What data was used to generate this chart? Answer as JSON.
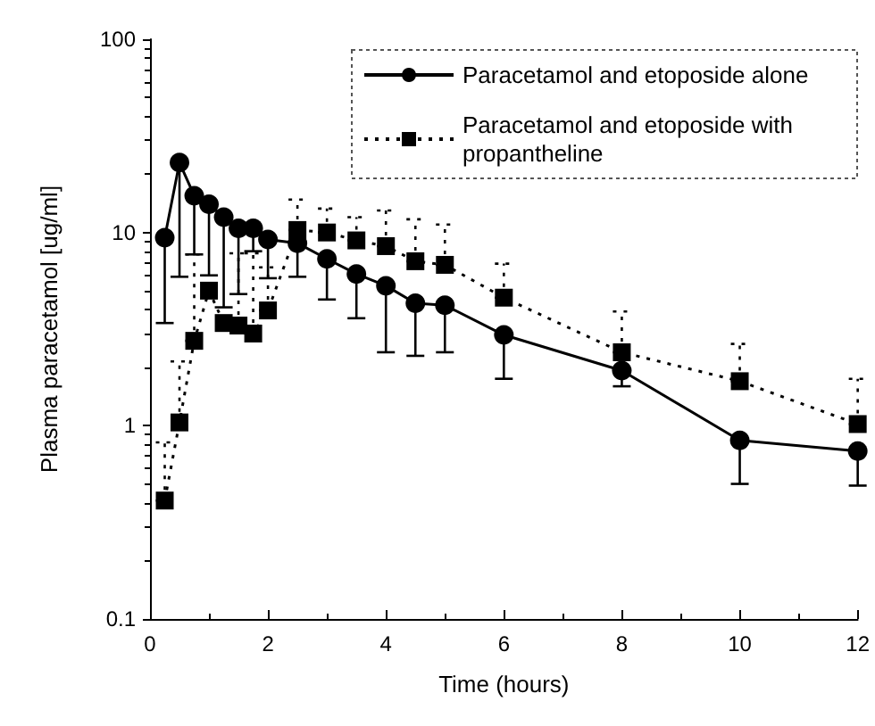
{
  "chart_data": {
    "type": "line",
    "xlabel": "Time (hours)",
    "ylabel": "Plasma paracetamol [ug/ml]",
    "x": [
      0.25,
      0.5,
      0.75,
      1,
      1.25,
      1.5,
      1.75,
      2,
      2.5,
      3,
      3.5,
      4,
      4.5,
      5,
      6,
      8,
      10,
      12
    ],
    "series": [
      {
        "name": "Paracetamol and etoposide alone",
        "color": "#000000",
        "marker": "circle",
        "line_style": "solid",
        "values": [
          9.4,
          23,
          15.5,
          14,
          12,
          10.5,
          10.5,
          9.2,
          8.8,
          7.3,
          6.1,
          5.3,
          4.3,
          4.2,
          2.95,
          1.93,
          0.84,
          0.74
        ],
        "errors": [
          [
            3.4,
            9.4
          ],
          [
            5.9,
            23
          ],
          [
            7.7,
            15.5
          ],
          [
            6,
            14
          ],
          [
            4.1,
            12
          ],
          [
            4.8,
            10.5
          ],
          [
            8,
            10.5
          ],
          [
            5.8,
            9.2
          ],
          [
            5.9,
            8.8
          ],
          [
            4.5,
            7.3
          ],
          [
            3.6,
            6.1
          ],
          [
            2.4,
            5.3
          ],
          [
            2.3,
            4.3
          ],
          [
            2.4,
            4.2
          ],
          [
            1.75,
            2.95
          ],
          [
            1.6,
            1.93
          ],
          [
            0.5,
            0.84
          ],
          [
            0.49,
            0.74
          ]
        ]
      },
      {
        "name": "Paracetamol and etoposide with propantheline",
        "color": "#000000",
        "marker": "square",
        "line_style": "dotted",
        "values": [
          0.41,
          1.04,
          2.75,
          5,
          3.4,
          3.3,
          3,
          3.95,
          10.3,
          10,
          9.1,
          8.5,
          7.1,
          6.8,
          4.6,
          2.4,
          1.7,
          1.02
        ],
        "errors": [
          [
            0.41,
            0.82
          ],
          [
            1.04,
            2.15
          ],
          [
            2.75,
            7.7
          ],
          null,
          null,
          [
            3.3,
            7.8
          ],
          [
            3,
            7.8
          ],
          [
            3.95,
            6.6
          ],
          [
            10.3,
            14.8
          ],
          [
            10,
            13.3
          ],
          [
            9.1,
            12
          ],
          [
            8.5,
            13
          ],
          [
            7.1,
            11.7
          ],
          [
            6.8,
            11
          ],
          [
            4.6,
            6.9
          ],
          [
            2.4,
            3.9
          ],
          [
            1.7,
            2.65
          ],
          [
            1.02,
            1.75
          ]
        ]
      }
    ],
    "xlim": [
      0,
      12
    ],
    "xticks": [
      0,
      2,
      4,
      6,
      8,
      10,
      12
    ],
    "ylim": [
      0.1,
      100
    ],
    "yticks": [
      0.1,
      1,
      10,
      100
    ],
    "log": "y",
    "legend": "top right",
    "grid": false
  }
}
